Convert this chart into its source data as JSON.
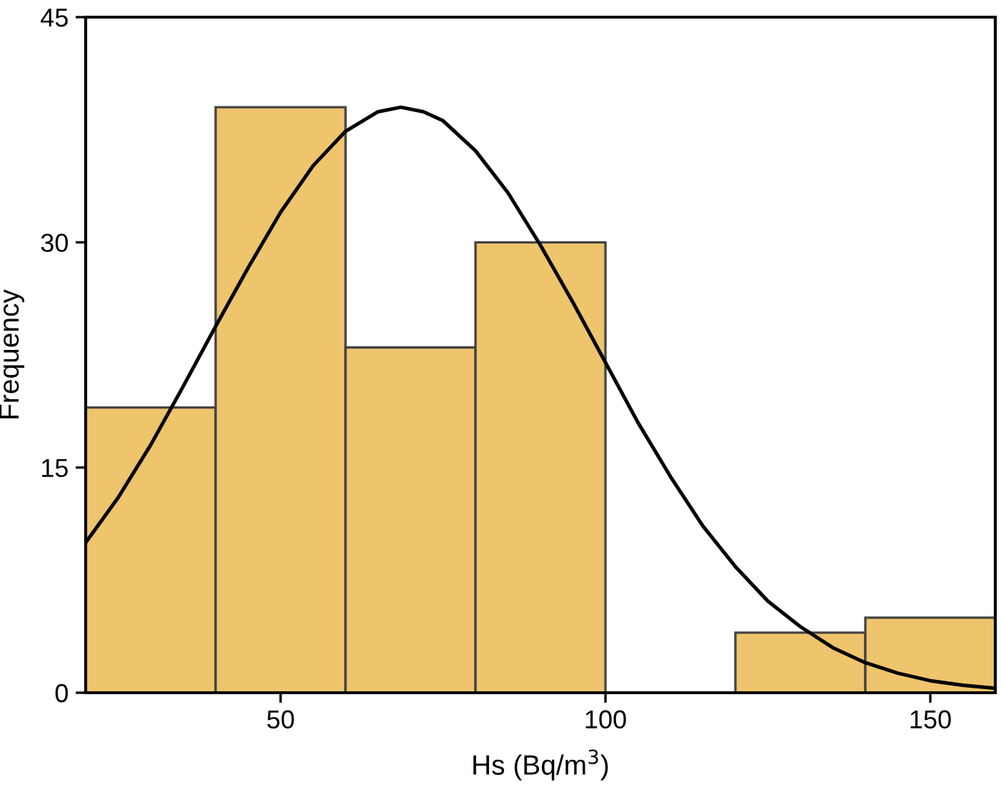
{
  "chart_data": {
    "type": "histogram",
    "xlabel": "Hs (Bq/m$^{3}$)",
    "ylabel": "Frequency",
    "bins": [
      20,
      40,
      60,
      80,
      100,
      120,
      140,
      160
    ],
    "values": [
      19,
      39,
      23,
      30,
      0,
      4,
      5
    ],
    "color": "#eec46c",
    "series": [
      {
        "type": "line",
        "color": "#000000",
        "x": [
          20,
          25,
          30,
          35,
          40,
          45,
          50,
          55,
          60,
          65,
          68.5,
          72,
          75,
          80,
          85,
          90,
          95,
          100,
          105,
          110,
          115,
          120,
          125,
          130,
          135,
          140,
          145,
          150,
          155,
          160
        ],
        "values": [
          10,
          13,
          16.5,
          20.4,
          24.4,
          28.3,
          32,
          35.1,
          37.4,
          38.7,
          39,
          38.7,
          38.1,
          36.1,
          33.3,
          29.8,
          26,
          22,
          18,
          14.4,
          11.1,
          8.4,
          6.1,
          4.4,
          3,
          2,
          1.3,
          0.8,
          0.5,
          0.3
        ]
      }
    ],
    "xlim": [
      20,
      160
    ],
    "ylim": [
      0,
      45
    ],
    "xticks": [
      50,
      100,
      150
    ],
    "yticks": [
      0,
      15,
      30,
      45
    ],
    "grid": false,
    "legend": false
  }
}
